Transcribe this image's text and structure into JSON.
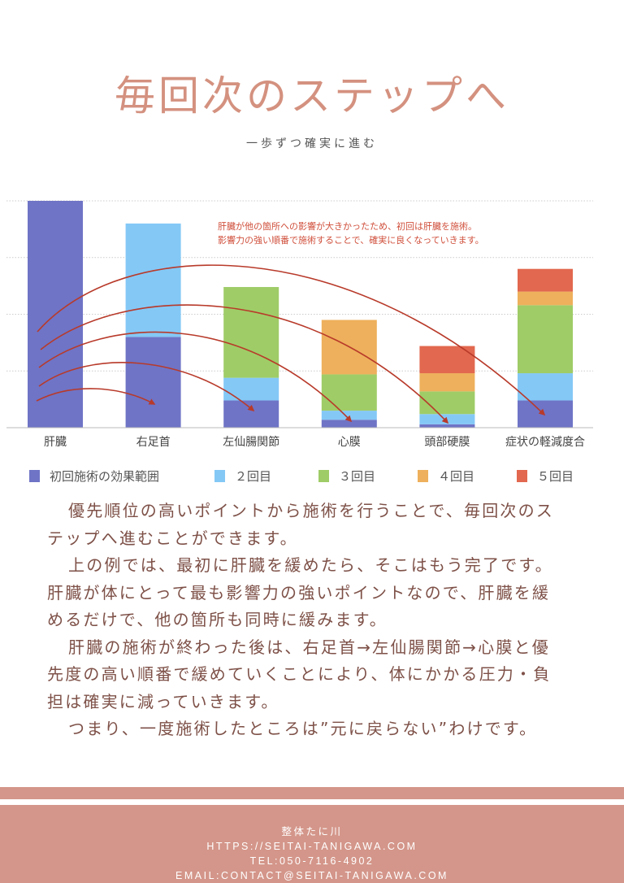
{
  "header": {
    "title": "毎回次のステップへ",
    "subtitle": "一歩ずつ確実に進む"
  },
  "colors": {
    "title": "#d4917f",
    "arrow": "#b83a2a",
    "annotation": "#d0503c",
    "footer_bg": "#d4968a"
  },
  "chart_data": {
    "type": "bar",
    "stacked": true,
    "title": "",
    "xlabel": "",
    "ylabel": "",
    "ylim": [
      0,
      100
    ],
    "grid": true,
    "legend_position": "bottom",
    "categories": [
      "肝臓",
      "右足首",
      "左仙腸関節",
      "心膜",
      "頭部硬膜",
      "症状の軽減度合"
    ],
    "series": [
      {
        "name": "初回施術の効果範囲",
        "color": "#6f74c6",
        "values": [
          100,
          40,
          12,
          3.5,
          1.5,
          12
        ]
      },
      {
        "name": "２回目",
        "color": "#84c8f6",
        "values": [
          0,
          50,
          10,
          4,
          4.5,
          12
        ]
      },
      {
        "name": "３回目",
        "color": "#9fcc67",
        "values": [
          0,
          0,
          40,
          16,
          10,
          30
        ]
      },
      {
        "name": "４回目",
        "color": "#eeb05c",
        "values": [
          0,
          0,
          0,
          24,
          8,
          6
        ]
      },
      {
        "name": "５回目",
        "color": "#e2684f",
        "values": [
          0,
          0,
          0,
          0,
          12,
          10
        ]
      }
    ],
    "annotation": [
      "肝臓が他の箇所への影響が大きかったため、初回は肝臓を施術。",
      "影響力の強い順番で施術することで、確実に良くなっていきます。"
    ],
    "arrows": [
      {
        "from": "肝臓",
        "to": "右足首"
      },
      {
        "from": "肝臓",
        "to": "左仙腸関節"
      },
      {
        "from": "肝臓",
        "to": "心膜"
      },
      {
        "from": "肝臓",
        "to": "頭部硬膜"
      },
      {
        "from": "肝臓",
        "to": "症状の軽減度合"
      }
    ]
  },
  "body": {
    "lines": [
      "優先順位の高いポイントから施術を行うことで、毎回次のス",
      "テップへ進むことができます。",
      "上の例では、最初に肝臓を緩めたら、そこはもう完了です。",
      "肝臓が体にとって最も影響力の強いポイントなので、肝臓を緩",
      "めるだけで、他の箇所も同時に緩みます。",
      "肝臓の施術が終わった後は、右足首→左仙腸関節→心膜と優",
      "先度の高い順番で緩めていくことにより、体にかかる圧力・負",
      "担は確実に減っていきます。",
      "つまり、一度施術したところは”元に戻らない”わけです。"
    ]
  },
  "footer": {
    "name": "整体たに川",
    "url": "HTTPS://SEITAI-TANIGAWA.COM",
    "tel": "TEL:050-7116-4902",
    "email": "EMAIL:CONTACT@SEITAI-TANIGAWA.COM"
  }
}
